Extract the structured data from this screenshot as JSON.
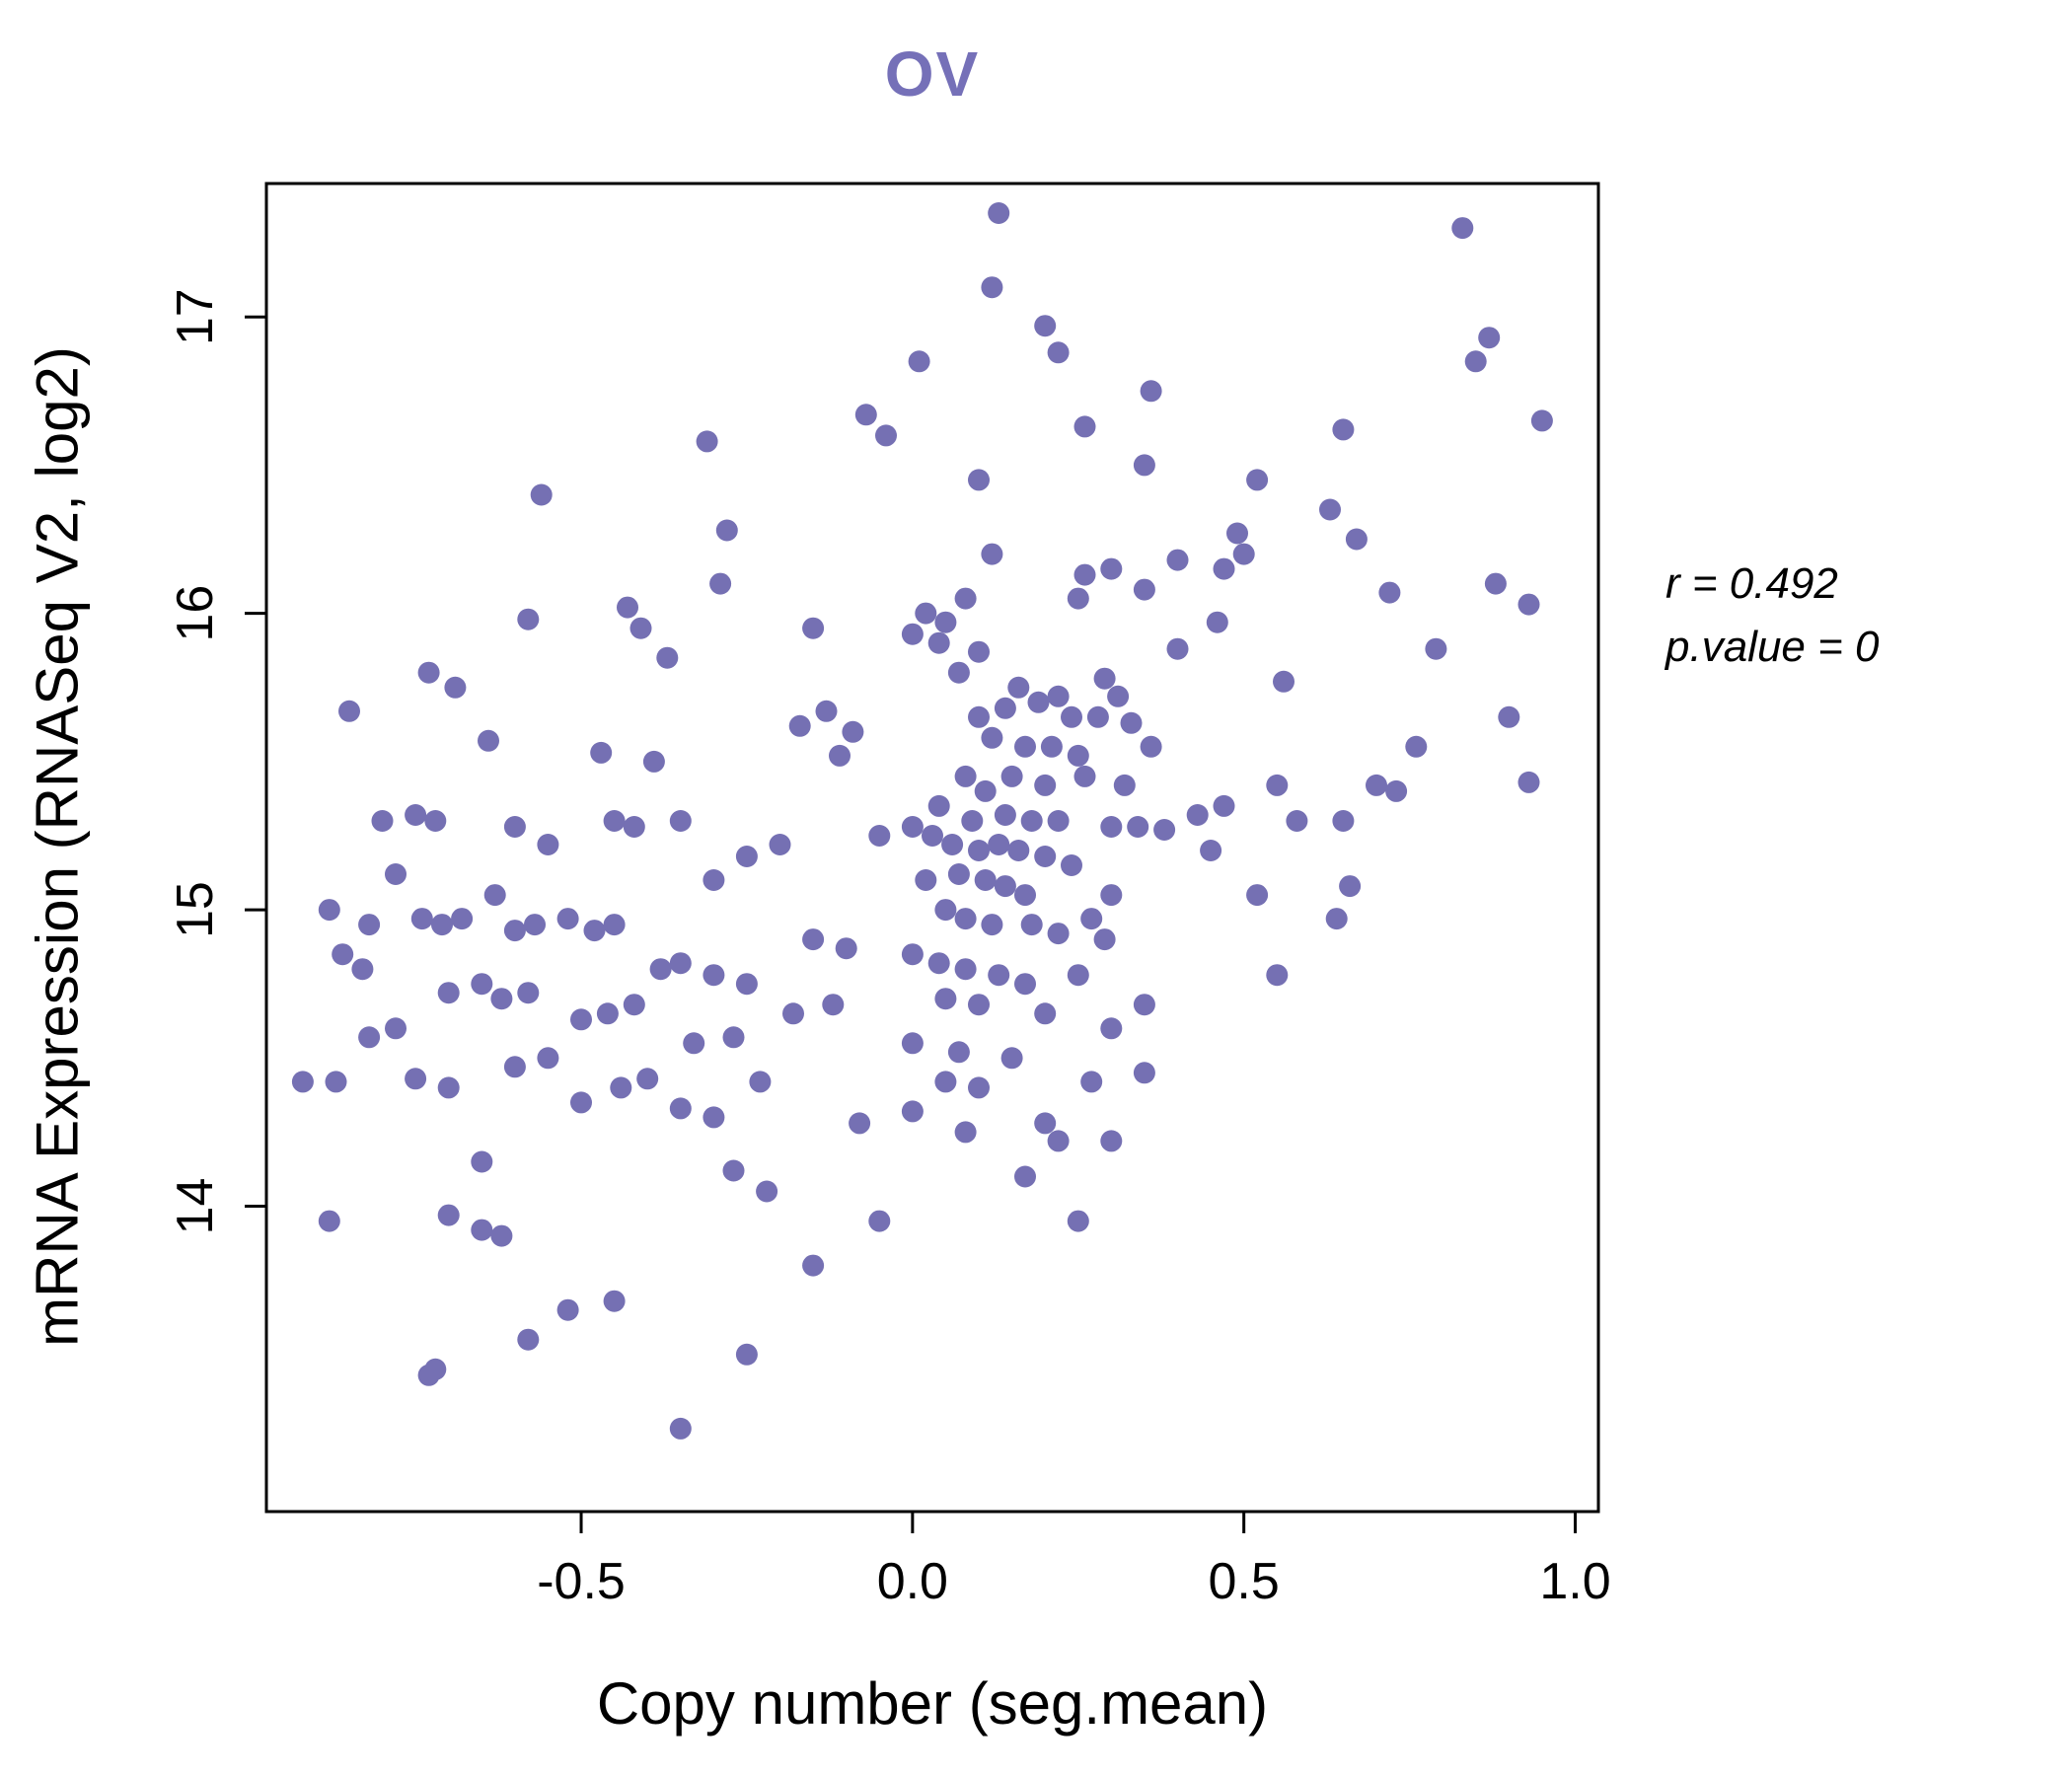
{
  "title": "OV",
  "annotation": {
    "line1": "r = 0.492",
    "line2": "p.value = 0"
  },
  "chart_data": {
    "type": "scatter",
    "title": "OV",
    "xlabel": "Copy number (seg.mean)",
    "ylabel": "mRNA Expression (RNASeq V2, log2)",
    "xlim": [
      -0.975,
      1.035
    ],
    "ylim": [
      12.97,
      17.45
    ],
    "x_tick_values": [
      -0.5,
      0.0,
      0.5,
      1.0
    ],
    "x_tick_labels": [
      "-0.5",
      "0.0",
      "0.5",
      "1.0"
    ],
    "y_tick_values": [
      14,
      15,
      16,
      17
    ],
    "y_tick_labels": [
      "14",
      "15",
      "16",
      "17"
    ],
    "grid": false,
    "legend": "none",
    "point_color": "#7570b3",
    "title_color": "#7570b8",
    "correlation_r": 0.492,
    "p_value": 0,
    "points": [
      [
        0.13,
        17.35
      ],
      [
        0.83,
        17.3
      ],
      [
        0.12,
        17.1
      ],
      [
        0.2,
        16.97
      ],
      [
        0.22,
        16.88
      ],
      [
        0.01,
        16.85
      ],
      [
        0.85,
        16.85
      ],
      [
        0.87,
        16.93
      ],
      [
        0.36,
        16.75
      ],
      [
        0.95,
        16.65
      ],
      [
        0.26,
        16.63
      ],
      [
        -0.07,
        16.67
      ],
      [
        -0.04,
        16.6
      ],
      [
        -0.31,
        16.58
      ],
      [
        0.65,
        16.62
      ],
      [
        0.35,
        16.5
      ],
      [
        0.52,
        16.45
      ],
      [
        0.1,
        16.45
      ],
      [
        -0.56,
        16.4
      ],
      [
        0.63,
        16.35
      ],
      [
        0.67,
        16.25
      ],
      [
        0.49,
        16.27
      ],
      [
        0.5,
        16.2
      ],
      [
        -0.28,
        16.28
      ],
      [
        0.4,
        16.18
      ],
      [
        0.47,
        16.15
      ],
      [
        0.12,
        16.2
      ],
      [
        0.26,
        16.13
      ],
      [
        0.3,
        16.15
      ],
      [
        -0.29,
        16.1
      ],
      [
        0.25,
        16.05
      ],
      [
        0.35,
        16.08
      ],
      [
        0.72,
        16.07
      ],
      [
        0.88,
        16.1
      ],
      [
        0.93,
        16.03
      ],
      [
        0.02,
        16.0
      ],
      [
        0.05,
        15.97
      ],
      [
        -0.43,
        16.02
      ],
      [
        -0.41,
        15.95
      ],
      [
        -0.58,
        15.98
      ],
      [
        0.08,
        16.05
      ],
      [
        0.0,
        15.93
      ],
      [
        -0.15,
        15.95
      ],
      [
        0.46,
        15.97
      ],
      [
        0.04,
        15.9
      ],
      [
        0.1,
        15.87
      ],
      [
        0.07,
        15.8
      ],
      [
        -0.37,
        15.85
      ],
      [
        -0.73,
        15.8
      ],
      [
        -0.69,
        15.75
      ],
      [
        0.4,
        15.88
      ],
      [
        0.79,
        15.88
      ],
      [
        0.29,
        15.78
      ],
      [
        0.31,
        15.72
      ],
      [
        0.16,
        15.75
      ],
      [
        0.19,
        15.7
      ],
      [
        0.14,
        15.68
      ],
      [
        0.22,
        15.72
      ],
      [
        0.24,
        15.65
      ],
      [
        0.56,
        15.77
      ],
      [
        0.1,
        15.65
      ],
      [
        -0.13,
        15.67
      ],
      [
        -0.85,
        15.67
      ],
      [
        -0.64,
        15.57
      ],
      [
        0.28,
        15.65
      ],
      [
        0.33,
        15.63
      ],
      [
        0.12,
        15.58
      ],
      [
        0.17,
        15.55
      ],
      [
        0.21,
        15.55
      ],
      [
        0.25,
        15.52
      ],
      [
        -0.09,
        15.6
      ],
      [
        -0.17,
        15.62
      ],
      [
        -0.11,
        15.52
      ],
      [
        0.36,
        15.55
      ],
      [
        0.76,
        15.55
      ],
      [
        0.9,
        15.65
      ],
      [
        0.93,
        15.43
      ],
      [
        0.15,
        15.45
      ],
      [
        0.08,
        15.45
      ],
      [
        0.11,
        15.4
      ],
      [
        0.2,
        15.42
      ],
      [
        0.26,
        15.45
      ],
      [
        0.32,
        15.42
      ],
      [
        -0.47,
        15.53
      ],
      [
        -0.39,
        15.5
      ],
      [
        0.55,
        15.42
      ],
      [
        0.58,
        15.3
      ],
      [
        0.43,
        15.32
      ],
      [
        0.47,
        15.35
      ],
      [
        0.04,
        15.35
      ],
      [
        0.09,
        15.3
      ],
      [
        0.14,
        15.32
      ],
      [
        0.18,
        15.3
      ],
      [
        0.22,
        15.3
      ],
      [
        0.65,
        15.3
      ],
      [
        0.7,
        15.42
      ],
      [
        0.73,
        15.4
      ],
      [
        0.3,
        15.28
      ],
      [
        0.34,
        15.28
      ],
      [
        0.38,
        15.27
      ],
      [
        -0.45,
        15.3
      ],
      [
        -0.72,
        15.3
      ],
      [
        -0.75,
        15.32
      ],
      [
        -0.8,
        15.3
      ],
      [
        -0.42,
        15.28
      ],
      [
        -0.35,
        15.3
      ],
      [
        0.0,
        15.28
      ],
      [
        0.03,
        15.25
      ],
      [
        0.06,
        15.22
      ],
      [
        0.1,
        15.2
      ],
      [
        0.13,
        15.22
      ],
      [
        -0.05,
        15.25
      ],
      [
        -0.6,
        15.28
      ],
      [
        -0.55,
        15.22
      ],
      [
        0.45,
        15.2
      ],
      [
        0.52,
        15.05
      ],
      [
        0.16,
        15.2
      ],
      [
        0.2,
        15.18
      ],
      [
        0.24,
        15.15
      ],
      [
        -0.2,
        15.22
      ],
      [
        -0.25,
        15.18
      ],
      [
        0.07,
        15.12
      ],
      [
        0.11,
        15.1
      ],
      [
        0.02,
        15.1
      ],
      [
        -0.3,
        15.1
      ],
      [
        -0.78,
        15.12
      ],
      [
        -0.88,
        15.0
      ],
      [
        -0.63,
        15.05
      ],
      [
        0.14,
        15.08
      ],
      [
        0.17,
        15.05
      ],
      [
        0.3,
        15.05
      ],
      [
        0.66,
        15.08
      ],
      [
        0.64,
        14.97
      ],
      [
        0.05,
        15.0
      ],
      [
        0.08,
        14.97
      ],
      [
        0.12,
        14.95
      ],
      [
        -0.68,
        14.97
      ],
      [
        -0.71,
        14.95
      ],
      [
        -0.74,
        14.97
      ],
      [
        -0.82,
        14.95
      ],
      [
        -0.52,
        14.97
      ],
      [
        -0.48,
        14.93
      ],
      [
        -0.45,
        14.95
      ],
      [
        -0.57,
        14.95
      ],
      [
        -0.6,
        14.93
      ],
      [
        0.18,
        14.95
      ],
      [
        0.22,
        14.92
      ],
      [
        0.27,
        14.97
      ],
      [
        0.29,
        14.9
      ],
      [
        -0.15,
        14.9
      ],
      [
        -0.1,
        14.87
      ],
      [
        -0.86,
        14.85
      ],
      [
        -0.83,
        14.8
      ],
      [
        0.0,
        14.85
      ],
      [
        0.04,
        14.82
      ],
      [
        0.08,
        14.8
      ],
      [
        -0.35,
        14.82
      ],
      [
        -0.38,
        14.8
      ],
      [
        -0.3,
        14.78
      ],
      [
        0.13,
        14.78
      ],
      [
        0.17,
        14.75
      ],
      [
        0.25,
        14.78
      ],
      [
        0.55,
        14.78
      ],
      [
        -0.25,
        14.75
      ],
      [
        -0.65,
        14.75
      ],
      [
        -0.7,
        14.72
      ],
      [
        -0.62,
        14.7
      ],
      [
        -0.58,
        14.72
      ],
      [
        0.05,
        14.7
      ],
      [
        0.1,
        14.68
      ],
      [
        -0.12,
        14.68
      ],
      [
        -0.18,
        14.65
      ],
      [
        -0.42,
        14.68
      ],
      [
        -0.46,
        14.65
      ],
      [
        -0.5,
        14.63
      ],
      [
        0.2,
        14.65
      ],
      [
        0.35,
        14.68
      ],
      [
        0.3,
        14.6
      ],
      [
        -0.78,
        14.6
      ],
      [
        -0.82,
        14.57
      ],
      [
        -0.27,
        14.57
      ],
      [
        -0.33,
        14.55
      ],
      [
        0.0,
        14.55
      ],
      [
        0.07,
        14.52
      ],
      [
        0.15,
        14.5
      ],
      [
        -0.55,
        14.5
      ],
      [
        -0.6,
        14.47
      ],
      [
        -0.87,
        14.42
      ],
      [
        -0.92,
        14.42
      ],
      [
        -0.75,
        14.43
      ],
      [
        -0.7,
        14.4
      ],
      [
        -0.4,
        14.43
      ],
      [
        -0.44,
        14.4
      ],
      [
        -0.23,
        14.42
      ],
      [
        0.05,
        14.42
      ],
      [
        0.1,
        14.4
      ],
      [
        0.27,
        14.42
      ],
      [
        0.35,
        14.45
      ],
      [
        -0.5,
        14.35
      ],
      [
        -0.35,
        14.33
      ],
      [
        -0.3,
        14.3
      ],
      [
        0.0,
        14.32
      ],
      [
        -0.08,
        14.28
      ],
      [
        0.08,
        14.25
      ],
      [
        0.2,
        14.28
      ],
      [
        0.22,
        14.22
      ],
      [
        0.3,
        14.22
      ],
      [
        -0.65,
        14.15
      ],
      [
        -0.27,
        14.12
      ],
      [
        -0.22,
        14.05
      ],
      [
        0.17,
        14.1
      ],
      [
        0.25,
        13.95
      ],
      [
        -0.7,
        13.97
      ],
      [
        -0.65,
        13.92
      ],
      [
        -0.62,
        13.9
      ],
      [
        -0.88,
        13.95
      ],
      [
        -0.05,
        13.95
      ],
      [
        -0.15,
        13.8
      ],
      [
        -0.45,
        13.68
      ],
      [
        -0.52,
        13.65
      ],
      [
        -0.58,
        13.55
      ],
      [
        -0.25,
        13.5
      ],
      [
        -0.72,
        13.45
      ],
      [
        -0.73,
        13.43
      ],
      [
        -0.35,
        13.25
      ]
    ]
  }
}
